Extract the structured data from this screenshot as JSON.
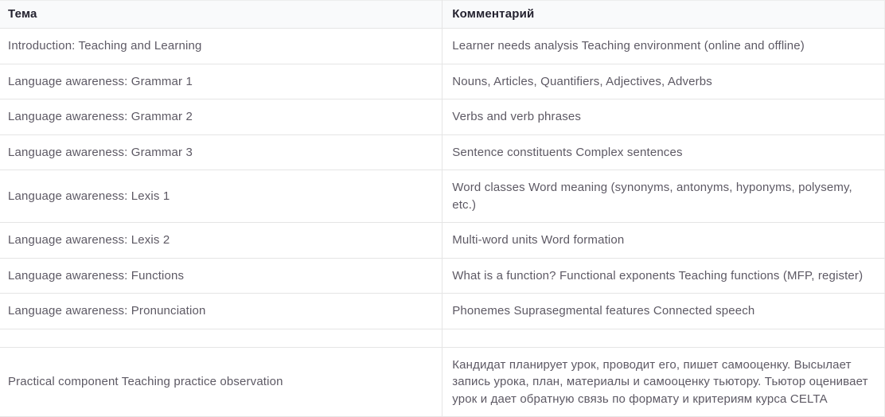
{
  "table": {
    "columns": [
      {
        "label": "Тема"
      },
      {
        "label": "Комментарий"
      }
    ],
    "rows": [
      {
        "topic": "Introduction: Teaching and Learning",
        "comment": "Learner needs analysis Teaching environment (online and offline)"
      },
      {
        "topic": "Language awareness: Grammar 1",
        "comment": "Nouns, Articles, Quantifiers, Adjectives, Adverbs"
      },
      {
        "topic": "Language awareness: Grammar 2",
        "comment": "Verbs and verb phrases"
      },
      {
        "topic": "Language awareness: Grammar 3",
        "comment": "Sentence constituents Complex sentences"
      },
      {
        "topic": "Language awareness: Lexis 1",
        "comment": "Word classes Word meaning (synonyms, antonyms, hyponyms, polysemy, etc.)"
      },
      {
        "topic": "Language awareness: Lexis 2",
        "comment": "Multi-word units Word formation"
      },
      {
        "topic": "Language awareness: Functions",
        "comment": "What is a function? Functional exponents Teaching functions (MFP, register)"
      },
      {
        "topic": "Language awareness: Pronunciation",
        "comment": "Phonemes Suprasegmental features Connected speech"
      },
      {
        "topic": "",
        "comment": ""
      },
      {
        "topic": "Practical component Teaching practice observation",
        "comment": "Кандидат планирует урок, проводит его, пишет самооценку. Высылает запись урока, план, материалы и самооценку тьютору. Тьютор оценивает урок и дает обратную связь по формату и критериям курса CELTA"
      }
    ]
  },
  "colors": {
    "header_background": "#f9fafb",
    "header_text": "#24222f",
    "body_text": "#5d5964",
    "border": "#e5e5e5"
  }
}
